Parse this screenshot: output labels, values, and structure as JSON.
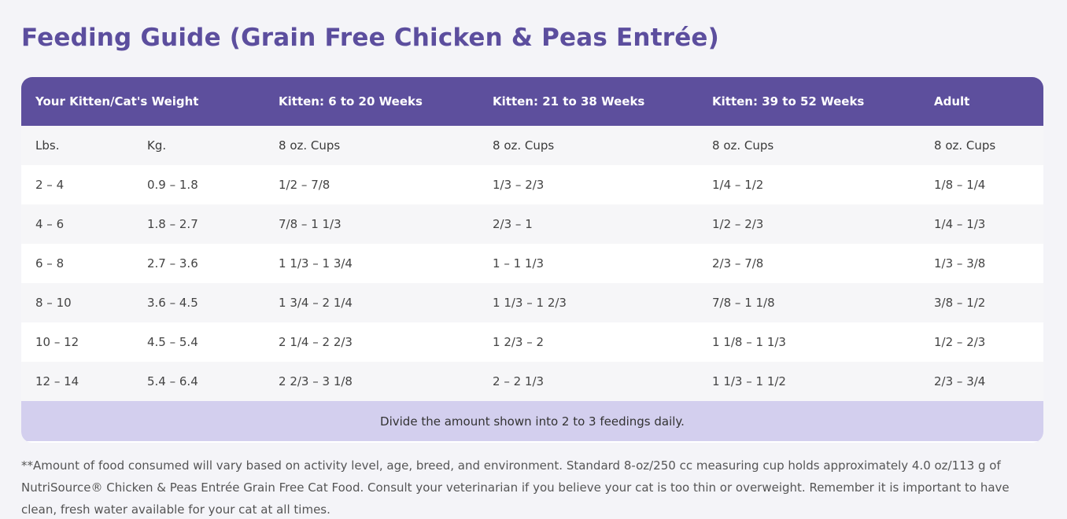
{
  "title": "Feeding Guide (Grain Free Chicken & Peas Entrée)",
  "table": {
    "headers": [
      "Your Kitten/Cat's Weight",
      "Kitten: 6 to 20 Weeks",
      "Kitten: 21 to 38 Weeks",
      "Kitten: 39 to 52 Weeks",
      "Adult"
    ],
    "units": [
      "Lbs.",
      "Kg.",
      "8 oz. Cups",
      "8 oz. Cups",
      "8 oz. Cups",
      "8 oz. Cups"
    ],
    "rows": [
      [
        "2 – 4",
        "0.9 – 1.8",
        "1/2 – 7/8",
        "1/3 – 2/3",
        "1/4 – 1/2",
        "1/8 – 1/4"
      ],
      [
        "4 – 6",
        "1.8 – 2.7",
        "7/8 – 1 1/3",
        "2/3 – 1",
        "1/2 – 2/3",
        "1/4 – 1/3"
      ],
      [
        "6 – 8",
        "2.7 – 3.6",
        "1 1/3 – 1 3/4",
        "1 – 1 1/3",
        "2/3 – 7/8",
        "1/3 – 3/8"
      ],
      [
        "8 – 10",
        "3.6 – 4.5",
        "1 3/4 – 2 1/4",
        "1 1/3 – 1 2/3",
        "7/8 – 1 1/8",
        "3/8 – 1/2"
      ],
      [
        "10 – 12",
        "4.5 – 5.4",
        "2 1/4 – 2 2/3",
        "1 2/3 – 2",
        "1 1/8 – 1 1/3",
        "1/2 – 2/3"
      ],
      [
        "12 – 14",
        "5.4 – 6.4",
        "2 2/3 – 3 1/8",
        "2 – 2 1/3",
        "1 1/3 – 1 1/2",
        "2/3 – 3/4"
      ]
    ],
    "footer": "Divide the amount shown into 2 to 3 feedings daily."
  },
  "footnote": "**Amount of food consumed will vary based on activity level, age, breed, and environment. Standard 8-oz/250 cc measuring cup holds approximately 4.0 oz/113 g of NutriSource® Chicken & Peas Entrée Grain Free Cat Food. Consult your veterinarian if you believe your cat is too thin or overweight. Remember it is important to have clean, fresh water available for your cat at all times.",
  "colors": {
    "title": "#5c4e9e",
    "header_bg": "#5d4f9d",
    "footer_bg": "#d3cfee",
    "row_alt": "#f6f6f8",
    "page_bg": "#f4f4f8"
  }
}
